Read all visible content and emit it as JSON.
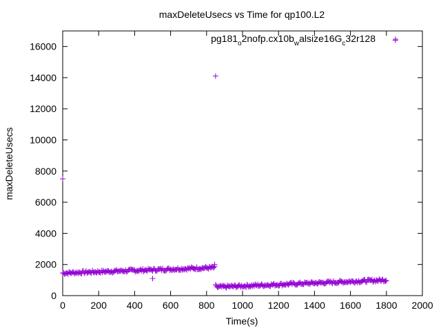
{
  "chart_data": {
    "type": "scatter",
    "title": "maxDeleteUsecs vs Time for qp100.L2",
    "xlabel": "Time(s)",
    "ylabel": "maxDeleteUsecs",
    "xlim": [
      0,
      2000
    ],
    "ylim": [
      0,
      17000
    ],
    "x_ticks": [
      "0",
      "200",
      "400",
      "600",
      "800",
      "1000",
      "1200",
      "1400",
      "1600",
      "1800",
      "2000"
    ],
    "y_ticks": [
      "0",
      "2000",
      "4000",
      "6000",
      "8000",
      "10000",
      "12000",
      "14000",
      "16000"
    ],
    "grid": false,
    "legend_position": "top-right",
    "marker": "+",
    "series": [
      {
        "name": "pg181_o2nofp.cx10b_walsize16G_c32r128",
        "name_parts": {
          "base": "pg181",
          "sub1": "o",
          "mid1": "2nofp.cx10b",
          "sub2": "w",
          "mid2": "alsize16G",
          "sub3": "c",
          "tail": "32r128"
        },
        "color": "#9400d3",
        "segments": [
          {
            "x_start": 0,
            "x_end": 845,
            "y_start": 1450,
            "y_end": 1800,
            "count": 170
          },
          {
            "x_start": 855,
            "x_end": 1800,
            "y_start": 550,
            "y_end": 1000,
            "count": 190
          }
        ],
        "outliers": [
          {
            "x": 0,
            "y": 7500
          },
          {
            "x": 500,
            "y": 1100
          },
          {
            "x": 850,
            "y": 14100
          },
          {
            "x": 1850,
            "y": 16400
          },
          {
            "x": 845,
            "y": 2000
          },
          {
            "x": 850,
            "y": 700
          }
        ]
      }
    ]
  }
}
